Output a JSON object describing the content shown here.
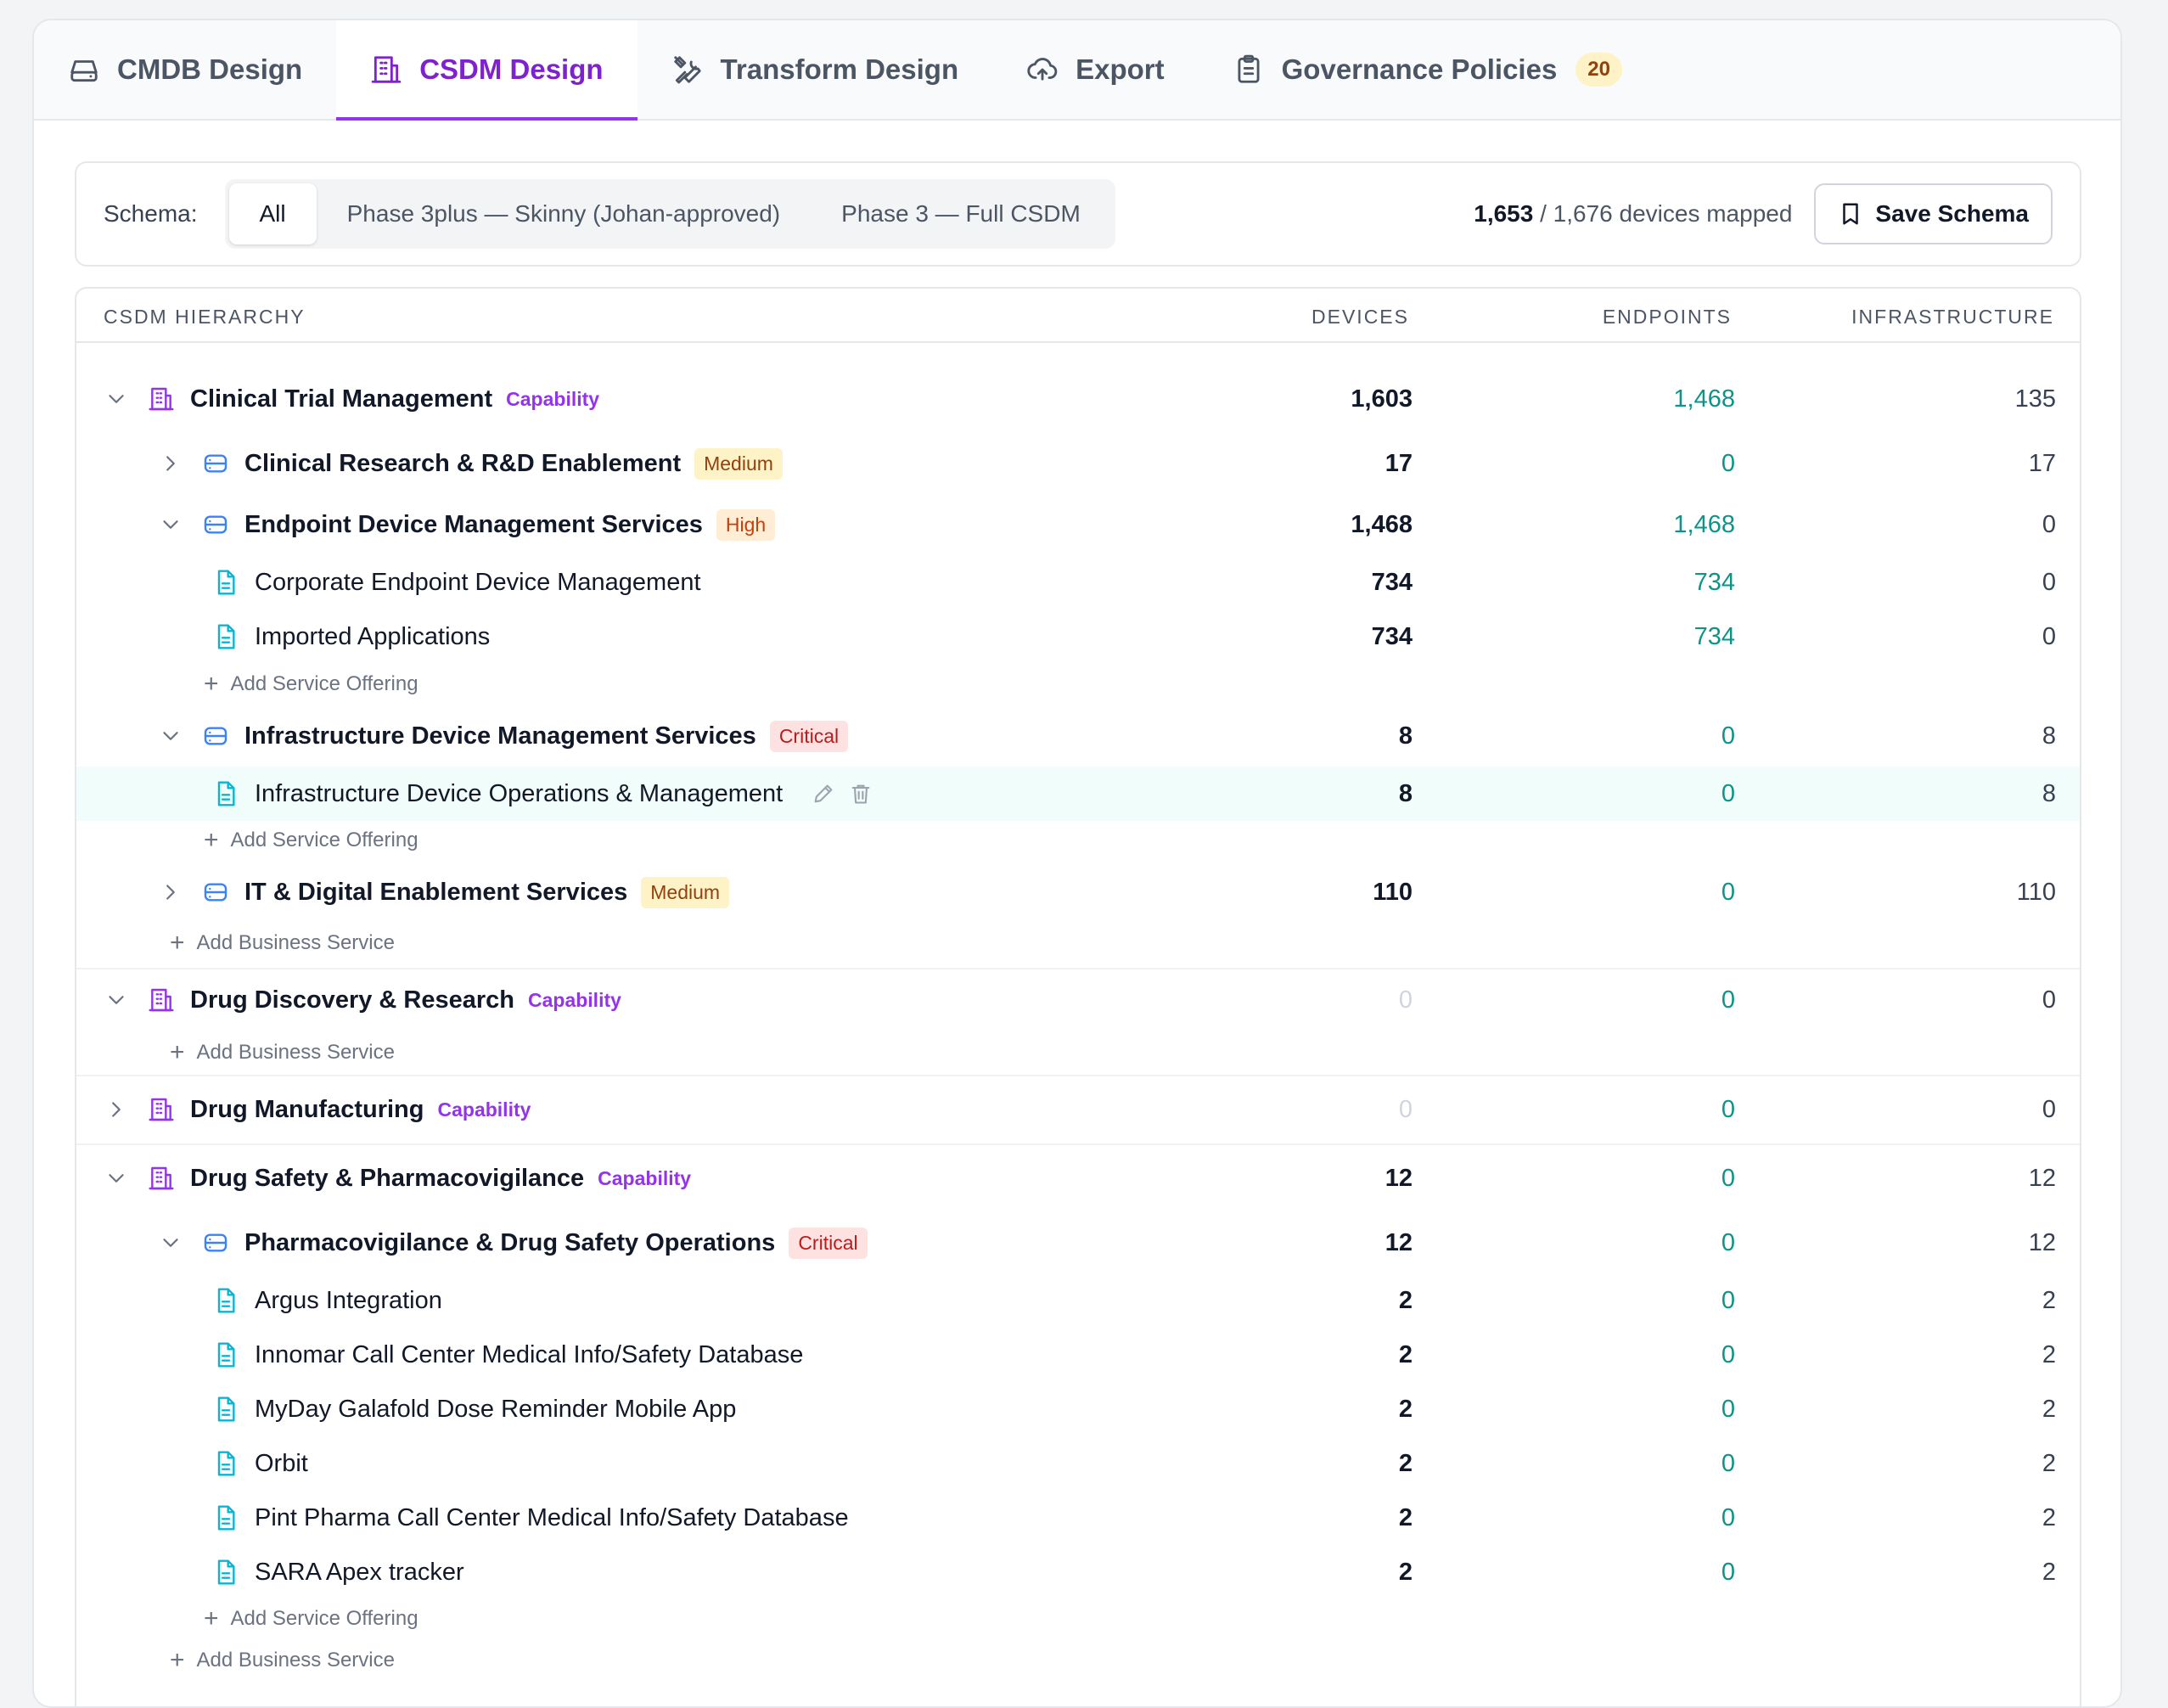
{
  "tabs": [
    {
      "label": "CMDB Design",
      "icon": "hard-drive-icon"
    },
    {
      "label": "CSDM Design",
      "icon": "building-icon",
      "active": true
    },
    {
      "label": "Transform Design",
      "icon": "tools-icon"
    },
    {
      "label": "Export",
      "icon": "cloud-upload-icon"
    },
    {
      "label": "Governance Policies",
      "icon": "clipboard-icon",
      "count": "20"
    }
  ],
  "schema": {
    "label": "Schema:",
    "options": [
      "All",
      "Phase 3plus — Skinny (Johan-approved)",
      "Phase 3 — Full CSDM"
    ],
    "selected": "All",
    "mapped_count": "1,653",
    "mapped_total": "/ 1,676 devices mapped",
    "save_label": "Save Schema"
  },
  "table": {
    "headers": {
      "name": "CSDM HIERARCHY",
      "devices": "DEVICES",
      "endpoints": "ENDPOINTS",
      "infrastructure": "INFRASTRUCTURE"
    },
    "rows": [
      {
        "label": "Clinical Trial Management",
        "badge": "Capability",
        "devices": "1,603",
        "endpoints": "1,468",
        "infrastructure": "135"
      },
      {
        "label": "Clinical Research & R&D Enablement",
        "badge": "Medium",
        "devices": "17",
        "endpoints": "0",
        "infrastructure": "17"
      },
      {
        "label": "Endpoint Device Management Services",
        "badge": "High",
        "devices": "1,468",
        "endpoints": "1,468",
        "infrastructure": "0"
      },
      {
        "label": "Corporate Endpoint Device Management",
        "devices": "734",
        "endpoints": "734",
        "infrastructure": "0"
      },
      {
        "label": "Imported Applications",
        "devices": "734",
        "endpoints": "734",
        "infrastructure": "0"
      },
      {
        "label": "Add Service Offering"
      },
      {
        "label": "Infrastructure Device Management Services",
        "badge": "Critical",
        "devices": "8",
        "endpoints": "0",
        "infrastructure": "8"
      },
      {
        "label": "Infrastructure Device Operations & Management",
        "devices": "8",
        "endpoints": "0",
        "infrastructure": "8"
      },
      {
        "label": "Add Service Offering"
      },
      {
        "label": "IT & Digital Enablement Services",
        "badge": "Medium",
        "devices": "110",
        "endpoints": "0",
        "infrastructure": "110"
      },
      {
        "label": "Add Business Service"
      },
      {
        "label": "Drug Discovery & Research",
        "badge": "Capability",
        "devices": "0",
        "endpoints": "0",
        "infrastructure": "0"
      },
      {
        "label": "Add Business Service"
      },
      {
        "label": "Drug Manufacturing",
        "badge": "Capability",
        "devices": "0",
        "endpoints": "0",
        "infrastructure": "0"
      },
      {
        "label": "Drug Safety & Pharmacovigilance",
        "badge": "Capability",
        "devices": "12",
        "endpoints": "0",
        "infrastructure": "12"
      },
      {
        "label": "Pharmacovigilance & Drug Safety Operations",
        "badge": "Critical",
        "devices": "12",
        "endpoints": "0",
        "infrastructure": "12"
      },
      {
        "label": "Argus Integration",
        "devices": "2",
        "endpoints": "0",
        "infrastructure": "2"
      },
      {
        "label": "Innomar Call Center Medical Info/Safety Database",
        "devices": "2",
        "endpoints": "0",
        "infrastructure": "2"
      },
      {
        "label": "MyDay Galafold Dose Reminder Mobile App",
        "devices": "2",
        "endpoints": "0",
        "infrastructure": "2"
      },
      {
        "label": "Orbit",
        "devices": "2",
        "endpoints": "0",
        "infrastructure": "2"
      },
      {
        "label": "Pint Pharma Call Center Medical Info/Safety Database",
        "devices": "2",
        "endpoints": "0",
        "infrastructure": "2"
      },
      {
        "label": "SARA Apex tracker",
        "devices": "2",
        "endpoints": "0",
        "infrastructure": "2"
      },
      {
        "label": "Add Service Offering"
      },
      {
        "label": "Add Business Service"
      }
    ]
  }
}
